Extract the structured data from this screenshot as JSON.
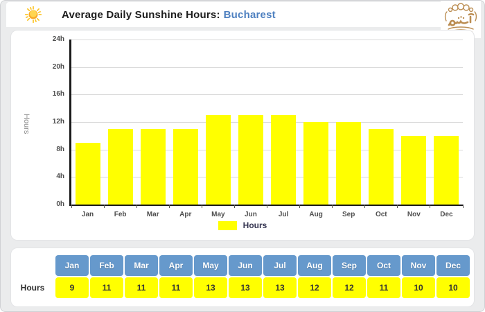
{
  "header": {
    "title": "Average Daily Sunshine Hours:",
    "city": "Bucharest"
  },
  "logo": {
    "text": "آیشم"
  },
  "chart_data": {
    "type": "bar",
    "title": "Average Daily Sunshine Hours: Bucharest",
    "categories": [
      "Jan",
      "Feb",
      "Mar",
      "Apr",
      "May",
      "Jun",
      "Jul",
      "Aug",
      "Sep",
      "Oct",
      "Nov",
      "Dec"
    ],
    "values": [
      9,
      11,
      11,
      11,
      13,
      13,
      13,
      12,
      12,
      11,
      10,
      10
    ],
    "xlabel": "",
    "ylabel": "Hours",
    "ylim": [
      0,
      24
    ],
    "ytick_step": 4,
    "ytick_suffix": "h",
    "grid": true,
    "legend": "Hours",
    "legend_position": "bottom-center",
    "bar_color": "#ffff00"
  },
  "table": {
    "row_label": "Hours",
    "columns": [
      "Jan",
      "Feb",
      "Mar",
      "Apr",
      "May",
      "Jun",
      "Jul",
      "Aug",
      "Sep",
      "Oct",
      "Nov",
      "Dec"
    ],
    "values": [
      "9",
      "11",
      "11",
      "11",
      "13",
      "13",
      "13",
      "12",
      "12",
      "11",
      "10",
      "10"
    ]
  },
  "colors": {
    "bar": "#ffff00",
    "table_header": "#6699cc",
    "table_value_bg": "#ffff00",
    "city_text": "#4e80c0",
    "axis": "#1a1a1a",
    "gridline": "#d9d9d9",
    "gold_logo": "#bb8d52",
    "page_background": "#ebeced",
    "panel_background": "#ffffff"
  }
}
